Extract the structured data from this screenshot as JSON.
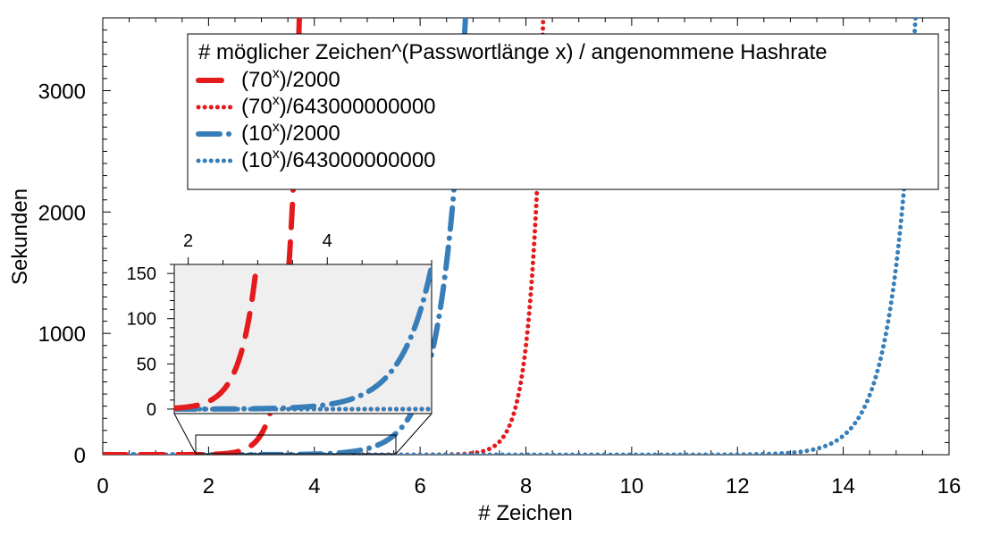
{
  "chart_data": {
    "type": "line",
    "xlabel": "# Zeichen",
    "ylabel": "Sekunden",
    "xlim": [
      0,
      16
    ],
    "ylim": [
      0,
      3600
    ],
    "x_ticks": [
      0,
      2,
      4,
      6,
      8,
      10,
      12,
      14,
      16
    ],
    "x_tick_labels": [
      "0",
      "2",
      "4",
      "6",
      "8",
      "10",
      "12",
      "14",
      "16"
    ],
    "y_ticks": [
      0,
      1000,
      2000,
      3000
    ],
    "y_tick_labels": [
      "0",
      "1000",
      "2000",
      "3000"
    ],
    "grid": false,
    "legend": {
      "title": "# möglicher Zeichen^(Passwortlänge x) / angenommene Hashrate",
      "placement": "top-right"
    },
    "series": [
      {
        "name": "(70^x)/2000",
        "base": 70,
        "divisor": 2000,
        "color": "#e41a1c",
        "style": "dashed",
        "legend_main": "(70",
        "legend_sup": "x",
        "legend_tail": ")/2000"
      },
      {
        "name": "(70^x)/643000000000",
        "base": 70,
        "divisor": 643000000000,
        "color": "#e41a1c",
        "style": "dotted",
        "legend_main": "(70",
        "legend_sup": "x",
        "legend_tail": ")/643000000000"
      },
      {
        "name": "(10^x)/2000",
        "base": 10,
        "divisor": 2000,
        "color": "#377eb8",
        "style": "dashdot",
        "legend_main": "(10",
        "legend_sup": "x",
        "legend_tail": ")/2000"
      },
      {
        "name": "(10^x)/643000000000",
        "base": 10,
        "divisor": 643000000000,
        "color": "#377eb8",
        "style": "dotted",
        "legend_main": "(10",
        "legend_sup": "x",
        "legend_tail": ")/643000000000"
      }
    ],
    "inset": {
      "xlim": [
        1.8,
        5.5
      ],
      "ylim": [
        -5,
        160
      ],
      "x_ticks": [
        2,
        4
      ],
      "x_tick_labels": [
        "2",
        "4"
      ],
      "y_ticks": [
        0,
        50,
        100,
        150
      ],
      "y_tick_labels": [
        "0",
        "50",
        "100",
        "150"
      ],
      "background": "#efefef"
    }
  }
}
